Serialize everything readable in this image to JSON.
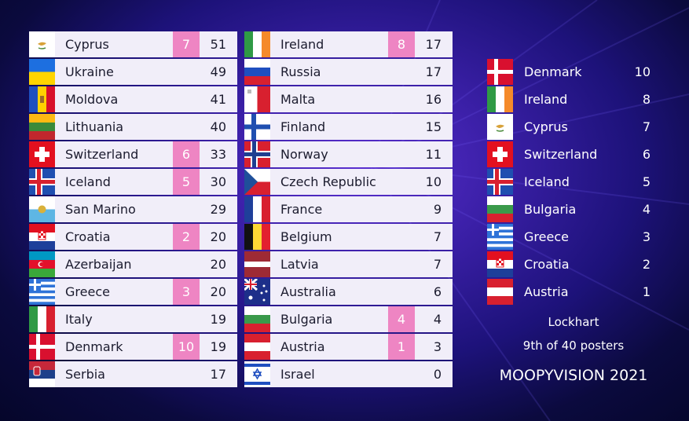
{
  "colors": {
    "points_badge": "#ee85c3",
    "row_bg": "#f1eef9"
  },
  "left_column": [
    {
      "country": "Cyprus",
      "points": "7",
      "total": "51",
      "flag": "cyprus-flag"
    },
    {
      "country": "Ukraine",
      "points": "",
      "total": "49",
      "flag": "ukraine-flag"
    },
    {
      "country": "Moldova",
      "points": "",
      "total": "41",
      "flag": "moldova-flag"
    },
    {
      "country": "Lithuania",
      "points": "",
      "total": "40",
      "flag": "lithuania-flag"
    },
    {
      "country": "Switzerland",
      "points": "6",
      "total": "33",
      "flag": "switzerland-flag"
    },
    {
      "country": "Iceland",
      "points": "5",
      "total": "30",
      "flag": "iceland-flag"
    },
    {
      "country": "San Marino",
      "points": "",
      "total": "29",
      "flag": "san-marino-flag"
    },
    {
      "country": "Croatia",
      "points": "2",
      "total": "20",
      "flag": "croatia-flag"
    },
    {
      "country": "Azerbaijan",
      "points": "",
      "total": "20",
      "flag": "azerbaijan-flag"
    },
    {
      "country": "Greece",
      "points": "3",
      "total": "20",
      "flag": "greece-flag"
    },
    {
      "country": "Italy",
      "points": "",
      "total": "19",
      "flag": "italy-flag"
    },
    {
      "country": "Denmark",
      "points": "10",
      "total": "19",
      "flag": "denmark-flag"
    },
    {
      "country": "Serbia",
      "points": "",
      "total": "17",
      "flag": "serbia-flag"
    }
  ],
  "middle_column": [
    {
      "country": "Ireland",
      "points": "8",
      "total": "17",
      "flag": "ireland-flag"
    },
    {
      "country": "Russia",
      "points": "",
      "total": "17",
      "flag": "russia-flag"
    },
    {
      "country": "Malta",
      "points": "",
      "total": "16",
      "flag": "malta-flag"
    },
    {
      "country": "Finland",
      "points": "",
      "total": "15",
      "flag": "finland-flag"
    },
    {
      "country": "Norway",
      "points": "",
      "total": "11",
      "flag": "norway-flag"
    },
    {
      "country": "Czech Republic",
      "points": "",
      "total": "10",
      "flag": "czech-flag"
    },
    {
      "country": "France",
      "points": "",
      "total": "9",
      "flag": "france-flag"
    },
    {
      "country": "Belgium",
      "points": "",
      "total": "7",
      "flag": "belgium-flag"
    },
    {
      "country": "Latvia",
      "points": "",
      "total": "7",
      "flag": "latvia-flag"
    },
    {
      "country": "Australia",
      "points": "",
      "total": "6",
      "flag": "australia-flag"
    },
    {
      "country": "Bulgaria",
      "points": "4",
      "total": "4",
      "flag": "bulgaria-flag"
    },
    {
      "country": "Austria",
      "points": "1",
      "total": "3",
      "flag": "austria-flag"
    },
    {
      "country": "Israel",
      "points": "",
      "total": "0",
      "flag": "israel-flag"
    }
  ],
  "given_points": [
    {
      "country": "Denmark",
      "points": "10",
      "flag": "denmark-flag"
    },
    {
      "country": "Ireland",
      "points": "8",
      "flag": "ireland-flag"
    },
    {
      "country": "Cyprus",
      "points": "7",
      "flag": "cyprus-flag"
    },
    {
      "country": "Switzerland",
      "points": "6",
      "flag": "switzerland-flag"
    },
    {
      "country": "Iceland",
      "points": "5",
      "flag": "iceland-flag"
    },
    {
      "country": "Bulgaria",
      "points": "4",
      "flag": "bulgaria-flag"
    },
    {
      "country": "Greece",
      "points": "3",
      "flag": "greece-flag"
    },
    {
      "country": "Croatia",
      "points": "2",
      "flag": "croatia-flag"
    },
    {
      "country": "Austria",
      "points": "1",
      "flag": "austria-flag"
    }
  ],
  "footer": {
    "voter": "Lockhart",
    "position": "9th of 40 posters",
    "event": "MOOPYVISION 2021"
  }
}
